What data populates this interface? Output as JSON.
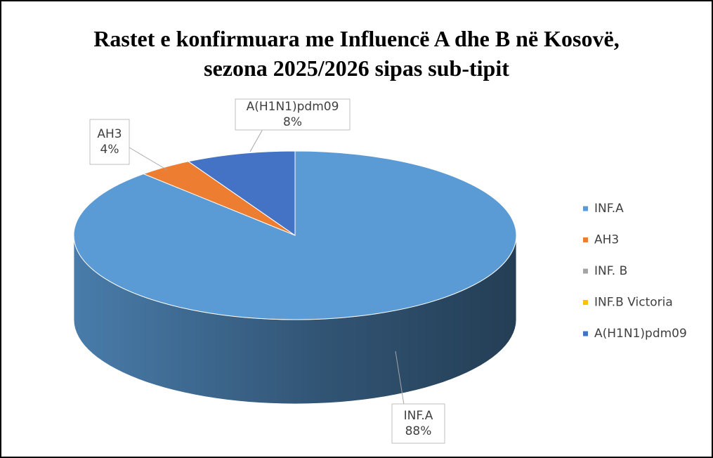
{
  "chart_data": {
    "type": "pie3d",
    "title": "Rastet e konfirmuara me Influencë A dhe B në Kosovë, sezona 2025/2026 sipas sub-tipit",
    "categories": [
      "INF.A",
      "AH3",
      "INF. B",
      "INF.B Victoria",
      "A(H1N1)pdm09"
    ],
    "values": [
      88,
      4,
      0,
      0,
      8
    ],
    "value_labels": [
      "88%",
      "4%",
      null,
      null,
      "8%"
    ],
    "colors": [
      "#5b9bd5",
      "#ed7d31",
      "#a5a5a5",
      "#ffc000",
      "#4472c4"
    ],
    "legend": "right"
  }
}
